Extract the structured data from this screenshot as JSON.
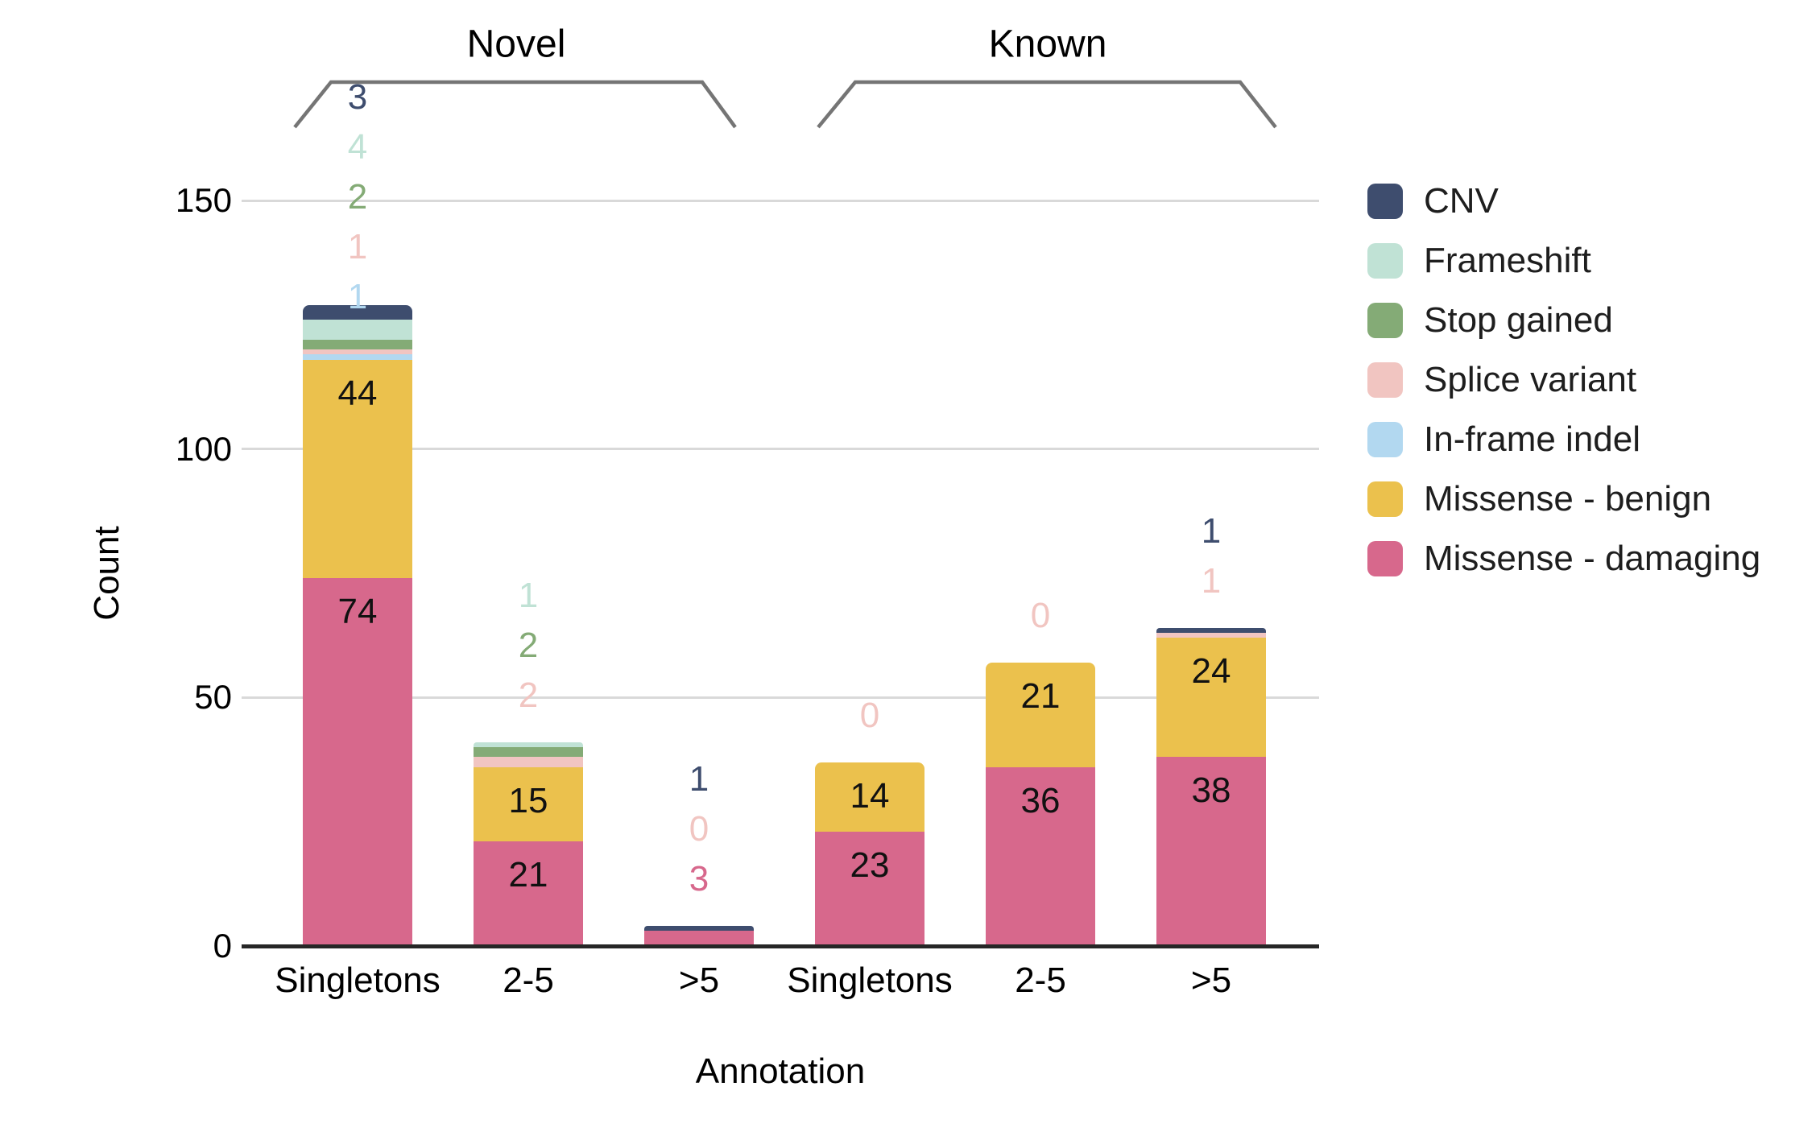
{
  "chart_data": {
    "type": "bar",
    "stacked": true,
    "xlabel": "Annotation",
    "ylabel": "Count",
    "categories": [
      "Singletons",
      "2-5",
      ">5",
      "Singletons",
      "2-5",
      ">5"
    ],
    "group_brackets": [
      {
        "label": "Novel",
        "bars": [
          0,
          2
        ]
      },
      {
        "label": "Known",
        "bars": [
          3,
          5
        ]
      }
    ],
    "y_ticks": [
      0,
      50,
      100,
      150
    ],
    "ylim": [
      0,
      165
    ],
    "grid": true,
    "legend_position": "right",
    "series": [
      {
        "name": "CNV",
        "color": "#3e4d6e",
        "values": [
          3,
          0,
          1,
          0,
          0,
          1
        ]
      },
      {
        "name": "Frameshift",
        "color": "#c0e2d5",
        "values": [
          4,
          1,
          0,
          0,
          0,
          0
        ]
      },
      {
        "name": "Stop gained",
        "color": "#84ab76",
        "values": [
          2,
          2,
          0,
          0,
          0,
          0
        ]
      },
      {
        "name": "Splice variant",
        "color": "#f1c5c1",
        "values": [
          1,
          2,
          0,
          0,
          0,
          1
        ]
      },
      {
        "name": "In-frame indel",
        "color": "#b2d8f0",
        "values": [
          1,
          0,
          0,
          0,
          0,
          0
        ]
      },
      {
        "name": "Missense - benign",
        "color": "#ebc14d",
        "values": [
          44,
          15,
          0,
          14,
          21,
          24
        ]
      },
      {
        "name": "Missense - damaging",
        "color": "#d7688c",
        "values": [
          74,
          21,
          3,
          23,
          36,
          38
        ]
      }
    ],
    "stack_order_bottom_to_top": [
      "Missense - damaging",
      "Missense - benign",
      "In-frame indel",
      "Splice variant",
      "Stop gained",
      "Frameshift",
      "CNV"
    ],
    "above_bar_labels": [
      [
        {
          "series": "CNV",
          "text": "3"
        },
        {
          "series": "Frameshift",
          "text": "4"
        },
        {
          "series": "Stop gained",
          "text": "2"
        },
        {
          "series": "Splice variant",
          "text": "1"
        },
        {
          "series": "In-frame indel",
          "text": "1"
        }
      ],
      [
        {
          "series": "Frameshift",
          "text": "1"
        },
        {
          "series": "Stop gained",
          "text": "2"
        },
        {
          "series": "Splice variant",
          "text": "2"
        }
      ],
      [
        {
          "series": "CNV",
          "text": "1"
        },
        {
          "series": "Splice variant",
          "text": "0"
        },
        {
          "series": "Missense - damaging",
          "text": "3"
        }
      ],
      [
        {
          "series": "Splice variant",
          "text": "0"
        }
      ],
      [
        {
          "series": "Splice variant",
          "text": "0"
        }
      ],
      [
        {
          "series": "CNV",
          "text": "1"
        },
        {
          "series": "Splice variant",
          "text": "1"
        }
      ]
    ],
    "inside_bar_labels": [
      [
        {
          "series": "Missense - benign",
          "text": "44"
        },
        {
          "series": "Missense - damaging",
          "text": "74"
        }
      ],
      [
        {
          "series": "Missense - benign",
          "text": "15"
        },
        {
          "series": "Missense - damaging",
          "text": "21"
        }
      ],
      [],
      [
        {
          "series": "Missense - benign",
          "text": "14"
        },
        {
          "series": "Missense - damaging",
          "text": "23"
        }
      ],
      [
        {
          "series": "Missense - benign",
          "text": "21"
        },
        {
          "series": "Missense - damaging",
          "text": "36"
        }
      ],
      [
        {
          "series": "Missense - benign",
          "text": "24"
        },
        {
          "series": "Missense - damaging",
          "text": "38"
        }
      ]
    ],
    "colors": {
      "gridline": "#d9d9d9",
      "axis_line": "#262626",
      "bracket": "#757575",
      "inside_label_text": "#111111"
    }
  }
}
